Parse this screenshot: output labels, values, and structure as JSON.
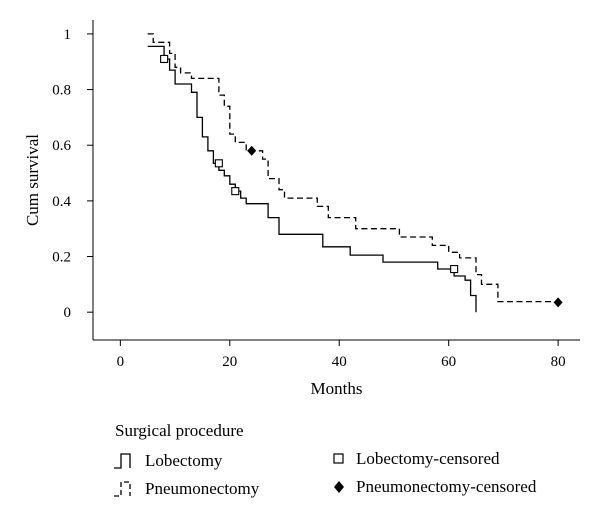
{
  "chart_data": {
    "type": "line",
    "subtype": "kaplan-meier-step",
    "xlabel": "Months",
    "ylabel": "Cum survival",
    "xlim": [
      -5,
      84
    ],
    "ylim": [
      -0.1,
      1.05
    ],
    "x_ticks": [
      0,
      20,
      40,
      60,
      80
    ],
    "y_ticks": [
      0,
      0.2,
      0.4,
      0.6,
      0.8,
      1
    ],
    "y_tick_labels": [
      "0",
      "0.2",
      "0.4",
      "0.6",
      "0.8",
      "1"
    ],
    "grid": false,
    "legend": {
      "title": "Surgical procedure",
      "placement": "bottom",
      "entries": [
        {
          "label": "Lobectomy",
          "style": "solid-step"
        },
        {
          "label": "Pneumonectomy",
          "style": "dashed-step"
        },
        {
          "label": "Lobectomy-censored",
          "style": "open-square"
        },
        {
          "label": "Pneumonectomy-censored",
          "style": "filled-diamond"
        }
      ]
    },
    "series": [
      {
        "name": "Lobectomy",
        "style": "solid",
        "color": "#000000",
        "points": [
          [
            5,
            0.955
          ],
          [
            8,
            0.955
          ],
          [
            8,
            0.91
          ],
          [
            9,
            0.91
          ],
          [
            9,
            0.87
          ],
          [
            10,
            0.87
          ],
          [
            10,
            0.82
          ],
          [
            13,
            0.82
          ],
          [
            13,
            0.79
          ],
          [
            14,
            0.79
          ],
          [
            14,
            0.7
          ],
          [
            15,
            0.7
          ],
          [
            15,
            0.63
          ],
          [
            16,
            0.63
          ],
          [
            16,
            0.58
          ],
          [
            17,
            0.58
          ],
          [
            17,
            0.535
          ],
          [
            18,
            0.535
          ],
          [
            18,
            0.51
          ],
          [
            19,
            0.51
          ],
          [
            19,
            0.49
          ],
          [
            20,
            0.49
          ],
          [
            20,
            0.46
          ],
          [
            21,
            0.46
          ],
          [
            21,
            0.435
          ],
          [
            22,
            0.435
          ],
          [
            22,
            0.41
          ],
          [
            23,
            0.41
          ],
          [
            23,
            0.39
          ],
          [
            27,
            0.39
          ],
          [
            27,
            0.34
          ],
          [
            29,
            0.34
          ],
          [
            29,
            0.28
          ],
          [
            37,
            0.28
          ],
          [
            37,
            0.235
          ],
          [
            42,
            0.235
          ],
          [
            42,
            0.205
          ],
          [
            48,
            0.205
          ],
          [
            48,
            0.18
          ],
          [
            58,
            0.18
          ],
          [
            58,
            0.155
          ],
          [
            61,
            0.155
          ],
          [
            61,
            0.13
          ],
          [
            63,
            0.13
          ],
          [
            63,
            0.115
          ],
          [
            64,
            0.115
          ],
          [
            64,
            0.06
          ],
          [
            65,
            0.06
          ],
          [
            65,
            0.0
          ]
        ],
        "censored": [
          [
            8,
            0.91
          ],
          [
            18,
            0.535
          ],
          [
            21,
            0.435
          ],
          [
            61,
            0.155
          ]
        ]
      },
      {
        "name": "Pneumonectomy",
        "style": "dashed",
        "color": "#000000",
        "points": [
          [
            5,
            1.0
          ],
          [
            6,
            1.0
          ],
          [
            6,
            0.97
          ],
          [
            9,
            0.97
          ],
          [
            9,
            0.93
          ],
          [
            10,
            0.93
          ],
          [
            10,
            0.88
          ],
          [
            11,
            0.88
          ],
          [
            11,
            0.86
          ],
          [
            13,
            0.86
          ],
          [
            13,
            0.84
          ],
          [
            18,
            0.84
          ],
          [
            18,
            0.78
          ],
          [
            19,
            0.78
          ],
          [
            19,
            0.74
          ],
          [
            20,
            0.74
          ],
          [
            20,
            0.64
          ],
          [
            21,
            0.64
          ],
          [
            21,
            0.61
          ],
          [
            23,
            0.61
          ],
          [
            23,
            0.58
          ],
          [
            26,
            0.58
          ],
          [
            26,
            0.55
          ],
          [
            27,
            0.55
          ],
          [
            27,
            0.48
          ],
          [
            29,
            0.48
          ],
          [
            29,
            0.44
          ],
          [
            30,
            0.44
          ],
          [
            30,
            0.41
          ],
          [
            36,
            0.41
          ],
          [
            36,
            0.38
          ],
          [
            38,
            0.38
          ],
          [
            38,
            0.34
          ],
          [
            43,
            0.34
          ],
          [
            43,
            0.3
          ],
          [
            51,
            0.3
          ],
          [
            51,
            0.27
          ],
          [
            57,
            0.27
          ],
          [
            57,
            0.24
          ],
          [
            60,
            0.24
          ],
          [
            60,
            0.215
          ],
          [
            62,
            0.215
          ],
          [
            62,
            0.195
          ],
          [
            65,
            0.195
          ],
          [
            65,
            0.135
          ],
          [
            66,
            0.135
          ],
          [
            66,
            0.1
          ],
          [
            69,
            0.1
          ],
          [
            69,
            0.038
          ],
          [
            80,
            0.038
          ]
        ],
        "censored": [
          [
            24,
            0.58
          ],
          [
            80,
            0.035
          ]
        ]
      }
    ]
  }
}
